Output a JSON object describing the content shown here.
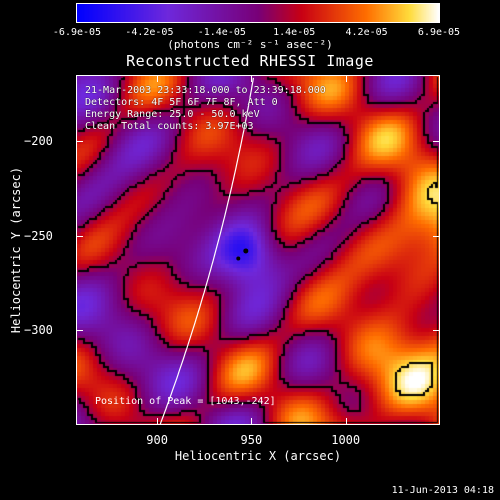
{
  "colorbar": {
    "tick_labels": [
      "-6.9e-05",
      "-4.2e-05",
      "-1.4e-05",
      "1.4e-05",
      "4.2e-05",
      "6.9e-05"
    ],
    "units": "(photons cm⁻² s⁻¹ asec⁻²)"
  },
  "chart_data": {
    "type": "heatmap",
    "title": "Reconstructed RHESSI Image",
    "xlabel": "Heliocentric X (arcsec)",
    "ylabel": "Heliocentric Y (arcsec)",
    "xlim": [
      857,
      1050
    ],
    "ylim": [
      -350,
      -165
    ],
    "xticks": [
      900,
      950,
      1000
    ],
    "yticks": [
      -200,
      -250,
      -300
    ],
    "color_range": [
      -6.9e-05,
      6.9e-05
    ],
    "colormap": "blue-purple-red-yellow-white",
    "peak_position": [
      1043,
      -242
    ],
    "min_marker": [
      947,
      -258
    ],
    "info_lines": [
      "21-Mar-2003 23:33:18.000 to 23:39:18.000",
      "Detectors: 4F 5F 6F 7F 8F, Att 0",
      "Energy Range: 25.0 - 50.0 keV",
      "Clean    Total counts: 3.97E+03"
    ],
    "peak_label": "Position of Peak = [1043,-242]"
  },
  "footer": {
    "date": "11-Jun-2013 04:18"
  }
}
